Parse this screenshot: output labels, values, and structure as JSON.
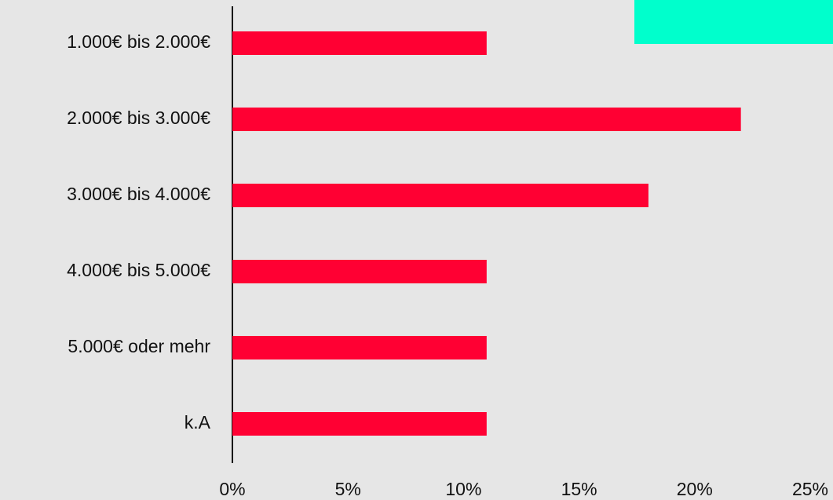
{
  "chart_data": {
    "type": "bar",
    "orientation": "horizontal",
    "categories": [
      "1.000€ bis 2.000€",
      "2.000€ bis 3.000€",
      "3.000€ bis 4.000€",
      "4.000€ bis 5.000€",
      "5.000€ oder mehr",
      "k.A"
    ],
    "values": [
      11,
      22,
      18,
      11,
      11,
      11
    ],
    "color": "#ff0033",
    "xlim": [
      0,
      25
    ],
    "xticks": [
      {
        "value": 0,
        "label": "0%"
      },
      {
        "value": 5,
        "label": "5%"
      },
      {
        "value": 10,
        "label": "10%"
      },
      {
        "value": 15,
        "label": "15%"
      },
      {
        "value": 20,
        "label": "20%"
      },
      {
        "value": 25,
        "label": "25%"
      }
    ],
    "grid": false
  }
}
